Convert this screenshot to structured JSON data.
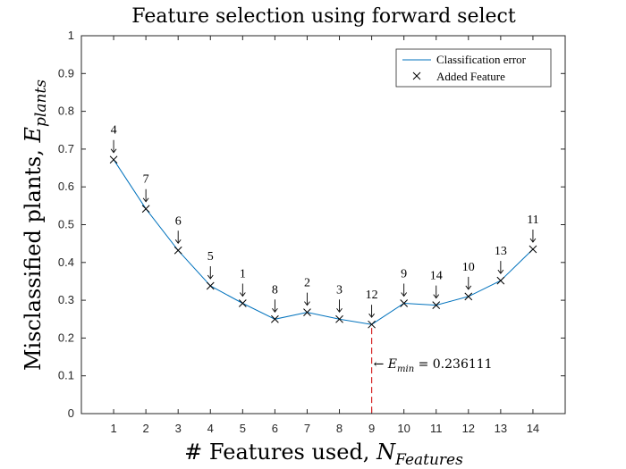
{
  "chart_data": {
    "type": "line",
    "title": "Feature selection using forward select",
    "xlabel_main": "# Features used, ",
    "xlabel_symbol": "N",
    "xlabel_sub": "Features",
    "ylabel_main": "Misclassified plants, ",
    "ylabel_symbol": "E",
    "ylabel_sub": "plants",
    "xlim": [
      0,
      15
    ],
    "ylim": [
      0,
      1
    ],
    "x_ticks": [
      1,
      2,
      3,
      4,
      5,
      6,
      7,
      8,
      9,
      10,
      11,
      12,
      13,
      14
    ],
    "y_ticks": [
      0,
      0.1,
      0.2,
      0.3,
      0.4,
      0.5,
      0.6,
      0.7,
      0.8,
      0.9,
      1
    ],
    "grid": false,
    "legend_position": "top-right",
    "series": [
      {
        "name": "Classification error",
        "color": "#0072BD",
        "x": [
          1,
          2,
          3,
          4,
          5,
          6,
          7,
          8,
          9,
          10,
          11,
          12,
          13,
          14
        ],
        "y": [
          0.672,
          0.542,
          0.432,
          0.338,
          0.292,
          0.25,
          0.268,
          0.25,
          0.236,
          0.292,
          0.287,
          0.31,
          0.352,
          0.435
        ]
      }
    ],
    "marker_legend": "Added Feature",
    "added_features": [
      "4",
      "7",
      "6",
      "5",
      "1",
      "8",
      "2",
      "3",
      "12",
      "9",
      "14",
      "10",
      "13",
      "11"
    ],
    "min_annotation": {
      "x": 9,
      "symbol": "E",
      "sub": "min",
      "value_text": " = 0.236111",
      "color": "#D62728"
    }
  }
}
